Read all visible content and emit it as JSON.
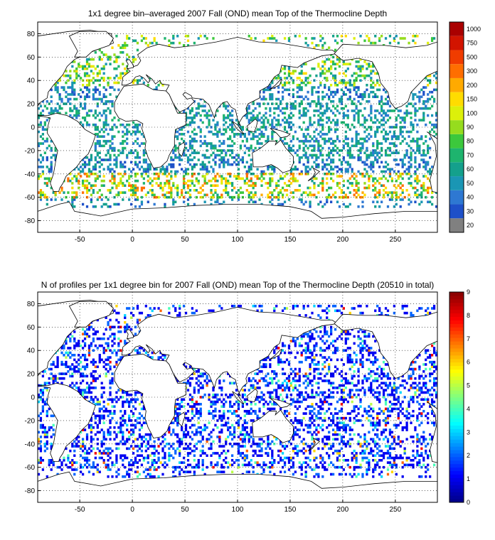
{
  "chart_data": [
    {
      "type": "heatmap",
      "title": "1x1 degree bin–averaged 2007 Fall (OND) mean Top of the Thermocline Depth",
      "x_ticks": [
        -50,
        0,
        50,
        100,
        150,
        200,
        250
      ],
      "y_ticks": [
        80,
        60,
        40,
        20,
        0,
        -20,
        -40,
        -60,
        -80
      ],
      "xlim": [
        -90,
        290
      ],
      "ylim": [
        -90,
        90
      ],
      "grid": true,
      "colorbar": {
        "labels": [
          "20",
          "30",
          "40",
          "50",
          "60",
          "70",
          "80",
          "90",
          "100",
          "150",
          "200",
          "300",
          "500",
          "750",
          "1000"
        ],
        "colors": [
          "#808080",
          "#1e50c8",
          "#2e78d2",
          "#1a96b4",
          "#14a08c",
          "#1eb46e",
          "#3cc83c",
          "#96dc1e",
          "#dcf00a",
          "#ffdc00",
          "#ffaa00",
          "#ff6e00",
          "#f03c00",
          "#d21400",
          "#aa0000"
        ]
      }
    },
    {
      "type": "heatmap",
      "title": "N of profiles per 1x1 degree bin for 2007 Fall (OND) mean Top of the Thermocline Depth  (20510 in total)",
      "x_ticks": [
        -50,
        0,
        50,
        100,
        150,
        200,
        250
      ],
      "y_ticks": [
        80,
        60,
        40,
        20,
        0,
        -20,
        -40,
        -60,
        -80
      ],
      "xlim": [
        -90,
        290
      ],
      "ylim": [
        -90,
        90
      ],
      "grid": true,
      "colorbar": {
        "range": [
          0,
          9
        ],
        "ticks": [
          0,
          1,
          2,
          3,
          4,
          5,
          6,
          7,
          8,
          9
        ],
        "colormap": "jet"
      }
    }
  ]
}
